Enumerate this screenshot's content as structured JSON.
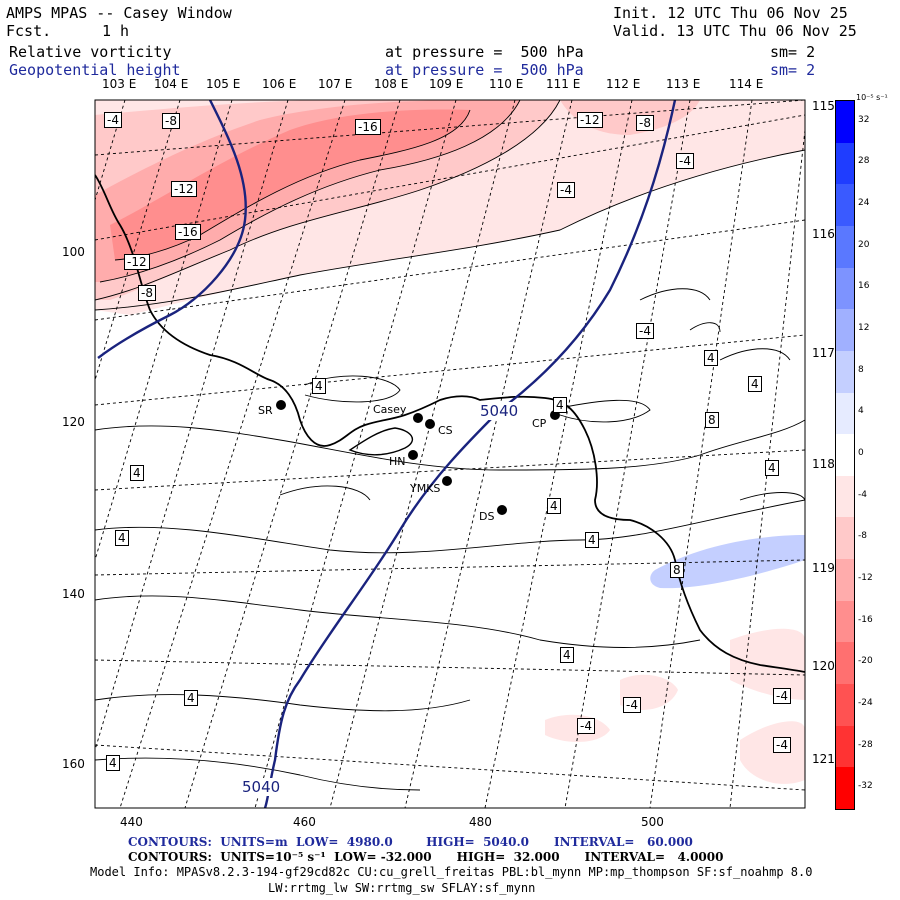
{
  "header": {
    "title": "AMPS MPAS -- Casey Window",
    "fcst_label": "Fcst.",
    "fcst_value": "1 h",
    "init": "Init. 12 UTC Thu 06 Nov 25",
    "valid": "Valid. 13 UTC Thu 06 Nov 25",
    "field1_name": "Relative vorticity",
    "field1_level": "at pressure =  500 hPa",
    "field1_sm": "sm= 2",
    "field2_name": "Geopotential height",
    "field2_level": "at pressure =  500 hPa",
    "field2_sm": "sm= 2"
  },
  "map": {
    "lon_labels_top": [
      "103 E",
      "104 E",
      "105 E",
      "106 E",
      "107 E",
      "108 E",
      "109 E",
      "110 E",
      "111 E",
      "112 E",
      "113 E",
      "114 E"
    ],
    "lon_labels_right": [
      "115 E",
      "116 E",
      "117 E",
      "118 E",
      "119 E",
      "120 E",
      "121 E"
    ],
    "x_ticks": [
      "440",
      "460",
      "480",
      "500"
    ],
    "y_ticks": [
      "100",
      "120",
      "140",
      "160"
    ],
    "stations": [
      {
        "name": "SR"
      },
      {
        "name": "Casey"
      },
      {
        "name": "CS"
      },
      {
        "name": "HN"
      },
      {
        "name": "YMKS"
      },
      {
        "name": "DS"
      },
      {
        "name": "CP"
      }
    ],
    "height_contour_label": "5040",
    "vorticity_labels": [
      "-4",
      "-8",
      "-16",
      "-12",
      "-8",
      "-4",
      "-12",
      "-16",
      "-12",
      "-8",
      "-4",
      "-4",
      "4",
      "4",
      "4",
      "4",
      "8",
      "4",
      "4",
      "4",
      "4",
      "4",
      "8",
      "4",
      "-4",
      "-4",
      "-4",
      "4"
    ]
  },
  "colorbar": {
    "unit": "10⁻⁵ s⁻¹",
    "levels": [
      "32",
      "28",
      "24",
      "20",
      "16",
      "12",
      "8",
      "4",
      "0",
      "-4",
      "-8",
      "-12",
      "-16",
      "-20",
      "-24",
      "-28",
      "-32"
    ],
    "colors": [
      "#0000ff",
      "#1f3dff",
      "#3a5aff",
      "#5a78ff",
      "#7d93ff",
      "#a0b0ff",
      "#c4cfff",
      "#e6ebff",
      "#ffffff",
      "#ffe6e6",
      "#ffc9c9",
      "#ffacac",
      "#ff8e8e",
      "#ff7070",
      "#ff5252",
      "#ff3333",
      "#ff0000"
    ]
  },
  "footer": {
    "line1": "CONTOURS:  UNITS=m  LOW=  4980.0        HIGH=  5040.0      INTERVAL=   60.000",
    "line2": "CONTOURS:  UNITS=10⁻⁵ s⁻¹  LOW= -32.000      HIGH=  32.000      INTERVAL=   4.0000",
    "line3": "Model Info: MPASv8.2.3-194-gf29cd82c CU:cu_grell_freitas PBL:bl_mynn MP:mp_thompson SF:sf_noahmp 8.0",
    "line4": "LW:rrtmg_lw SW:rrtmg_sw SFLAY:sf_mynn"
  }
}
